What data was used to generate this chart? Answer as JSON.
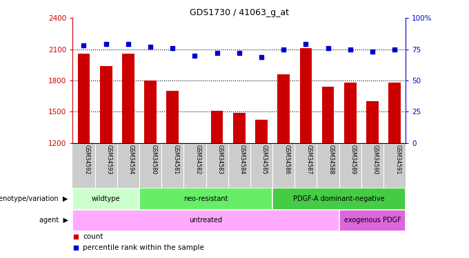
{
  "title": "GDS1730 / 41063_g_at",
  "samples": [
    "GSM34592",
    "GSM34593",
    "GSM34594",
    "GSM34580",
    "GSM34581",
    "GSM34582",
    "GSM34583",
    "GSM34584",
    "GSM34585",
    "GSM34586",
    "GSM34587",
    "GSM34588",
    "GSM34589",
    "GSM34590",
    "GSM34591"
  ],
  "counts": [
    2060,
    1940,
    2060,
    1800,
    1700,
    1200,
    1510,
    1490,
    1420,
    1860,
    2110,
    1740,
    1780,
    1600,
    1780
  ],
  "percentile": [
    78,
    79,
    79,
    77,
    76,
    70,
    72,
    72,
    69,
    75,
    79,
    76,
    75,
    73,
    75
  ],
  "ylim_left": [
    1200,
    2400
  ],
  "ylim_right": [
    0,
    100
  ],
  "yticks_left": [
    1200,
    1500,
    1800,
    2100,
    2400
  ],
  "yticks_right": [
    0,
    25,
    50,
    75,
    100
  ],
  "bar_color": "#cc0000",
  "dot_color": "#0000cc",
  "bar_bottom": 1200,
  "genotype_groups": [
    {
      "label": "wildtype",
      "start": 0,
      "end": 3,
      "color": "#ccffcc"
    },
    {
      "label": "neo-resistant",
      "start": 3,
      "end": 9,
      "color": "#66ee66"
    },
    {
      "label": "PDGF-A dominant-negative",
      "start": 9,
      "end": 15,
      "color": "#44cc44"
    }
  ],
  "agent_groups": [
    {
      "label": "untreated",
      "start": 0,
      "end": 12,
      "color": "#ffaaff"
    },
    {
      "label": "exogenous PDGF",
      "start": 12,
      "end": 15,
      "color": "#dd66dd"
    }
  ],
  "legend_count_label": "count",
  "legend_pct_label": "percentile rank within the sample",
  "geno_label": "genotype/variation",
  "agent_label": "agent"
}
